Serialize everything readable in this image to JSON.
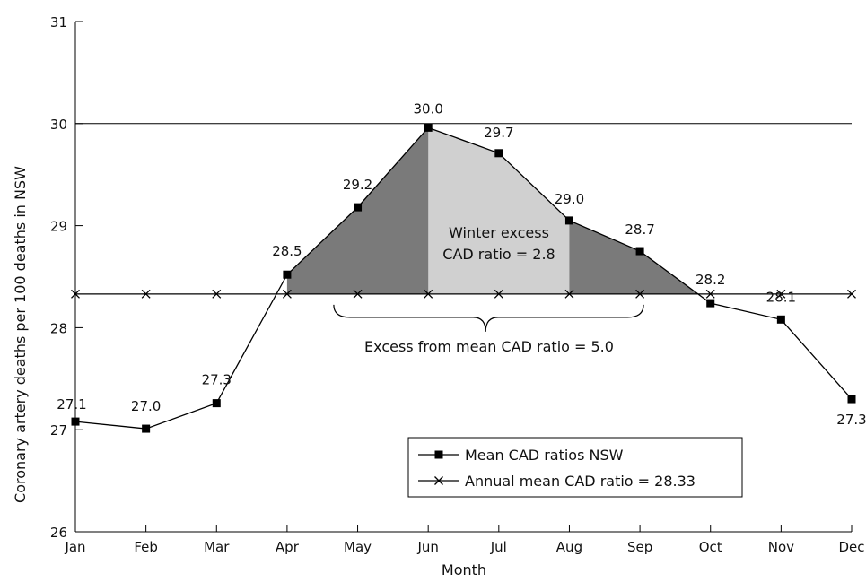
{
  "chart_data": {
    "type": "line",
    "xlabel": "Month",
    "ylabel": "Coronary artery deaths per 100 deaths in NSW",
    "categories": [
      "Jan",
      "Feb",
      "Mar",
      "Apr",
      "May",
      "Jun",
      "Jul",
      "Aug",
      "Sep",
      "Oct",
      "Nov",
      "Dec"
    ],
    "ylim": [
      26,
      31
    ],
    "yticks": [
      26,
      27,
      28,
      29,
      30,
      31
    ],
    "reference_lines": [
      30
    ],
    "series": [
      {
        "name": "Mean CAD ratios NSW",
        "marker": "square",
        "values": [
          27.08,
          27.01,
          27.26,
          28.52,
          29.18,
          29.96,
          29.71,
          29.05,
          28.75,
          28.24,
          28.08,
          27.3
        ],
        "labels": [
          "27.1",
          "27.0",
          "27.3",
          "28.5",
          "29.2",
          "30.0",
          "29.7",
          "29.0",
          "28.7",
          "28.2",
          "28.1",
          "27.3"
        ]
      },
      {
        "name": "Annual mean CAD ratio = 28.33",
        "marker": "x",
        "values": [
          28.33,
          28.33,
          28.33,
          28.33,
          28.33,
          28.33,
          28.33,
          28.33,
          28.33,
          28.33,
          28.33,
          28.33
        ]
      }
    ],
    "shaded_regions": [
      {
        "from": "Apr",
        "to": "Oct",
        "color": "#7a7a7a"
      },
      {
        "from": "Jun",
        "to": "Aug",
        "color": "#d0d0d0"
      }
    ],
    "annotations": {
      "winter_line1": "Winter excess",
      "winter_line2": "CAD ratio = 2.8",
      "excess": "Excess from mean CAD ratio = 5.0"
    },
    "legend": {
      "position": "bottom-right",
      "entries": [
        "Mean CAD ratios NSW",
        "Annual mean CAD ratio = 28.33"
      ]
    },
    "colors": {
      "line": "#000000",
      "dark_fill": "#7a7a7a",
      "light_fill": "#d0d0d0"
    }
  }
}
